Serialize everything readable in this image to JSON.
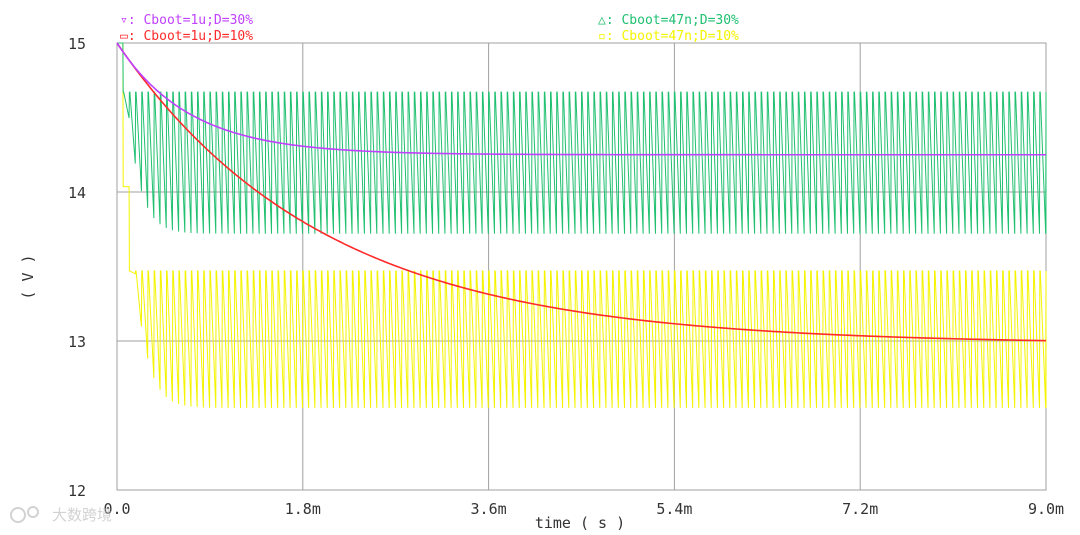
{
  "chart_data": {
    "type": "line",
    "title": "",
    "xlabel": "time ( s )",
    "ylabel": "( V )",
    "xlim": [
      0,
      9.0
    ],
    "x_unit": "ms",
    "ylim": [
      12,
      15
    ],
    "x_ticks": [
      0,
      1.8,
      3.6,
      5.4,
      7.2,
      9.0
    ],
    "x_tick_labels": [
      "0.0",
      "1.8m",
      "3.6m",
      "5.4m",
      "7.2m",
      "9.0m"
    ],
    "y_ticks": [
      12,
      13,
      14,
      15
    ],
    "y_tick_labels": [
      "12",
      "13",
      "14",
      "15"
    ],
    "grid": true,
    "series": [
      {
        "name": "Cboot=1u;D=30%",
        "legend_marker": "▿",
        "color": "#c040ff",
        "kind": "decay",
        "start": 15.0,
        "settle": 14.25,
        "tau_ms": 0.7
      },
      {
        "name": "Cboot=1u;D=10%",
        "legend_marker": "▭",
        "color": "#ff2a2a",
        "kind": "decay",
        "start": 15.0,
        "settle": 12.98,
        "tau_ms": 2.0
      },
      {
        "name": "Cboot=47n;D=30%",
        "legend_marker": "△",
        "color": "#20c070",
        "kind": "ripple",
        "start": 15.0,
        "high": 14.67,
        "low": 13.72,
        "period_ms": 0.06
      },
      {
        "name": "Cboot=47n;D=10%",
        "legend_marker": "▫",
        "color": "#f4f400",
        "kind": "ripple",
        "start": 15.0,
        "high": 13.47,
        "low": 12.55,
        "period_ms": 0.06
      }
    ]
  },
  "watermark": {
    "brand": "大数跨境"
  }
}
